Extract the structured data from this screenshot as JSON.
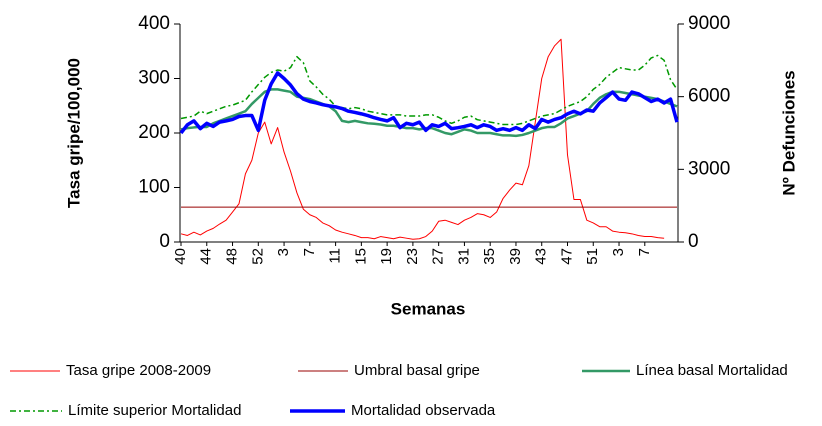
{
  "chart_data": {
    "type": "line",
    "y_label": "Tasa gripe/100,000",
    "y2_label": "Nº Defunciones",
    "x_label": "Semanas",
    "categories": [
      "40",
      null,
      null,
      null,
      "44",
      null,
      null,
      null,
      "48",
      null,
      null,
      null,
      "52",
      null,
      null,
      null,
      "3",
      null,
      null,
      null,
      "7",
      null,
      null,
      null,
      "11",
      null,
      null,
      null,
      "15",
      null,
      null,
      null,
      "19",
      null,
      null,
      null,
      "23",
      null,
      null,
      null,
      "27",
      null,
      null,
      null,
      "31",
      null,
      null,
      null,
      "35",
      null,
      null,
      null,
      "39",
      null,
      null,
      null,
      "43",
      null,
      null,
      null,
      "47",
      null,
      null,
      null,
      "51",
      null,
      null,
      null,
      "3",
      null,
      null,
      null,
      "7",
      null,
      null,
      null,
      null,
      null
    ],
    "ylim": [
      0,
      400
    ],
    "yticks": [
      0,
      100,
      200,
      300,
      400
    ],
    "y2lim": [
      0,
      9000
    ],
    "y2ticks": [
      0,
      3000,
      6000,
      9000
    ],
    "series": [
      {
        "name": "Tasa gripe 2008-2009",
        "color": "#ff0000",
        "values": [
          15,
          12,
          18,
          13,
          20,
          25,
          33,
          40,
          55,
          70,
          125,
          150,
          200,
          220,
          180,
          210,
          165,
          130,
          90,
          60,
          50,
          45,
          35,
          30,
          22,
          18,
          15,
          12,
          8,
          8,
          6,
          10,
          8,
          6,
          9,
          7,
          5,
          6,
          10,
          20,
          38,
          40,
          36,
          32,
          40,
          45,
          52,
          50,
          45,
          55,
          80,
          95,
          108,
          105,
          140,
          220,
          300,
          340,
          360,
          372,
          160,
          78,
          78,
          40,
          35,
          28,
          28,
          20,
          18,
          17,
          15,
          12,
          10,
          10,
          8,
          7,
          null,
          null
        ]
      },
      {
        "name": "Umbral basal gripe",
        "color": "#990000",
        "values": [
          64,
          64,
          64,
          64,
          64,
          64,
          64,
          64,
          64,
          64,
          64,
          64,
          64,
          64,
          64,
          64,
          64,
          64,
          64,
          64,
          64,
          64,
          64,
          64,
          64,
          64,
          64,
          64,
          64,
          64,
          64,
          64,
          64,
          64,
          64,
          64,
          64,
          64,
          64,
          64,
          64,
          64,
          64,
          64,
          64,
          64,
          64,
          64,
          64,
          64,
          64,
          64,
          64,
          64,
          64,
          64,
          64,
          64,
          64,
          64,
          64,
          64,
          64,
          64,
          64,
          64,
          64,
          64,
          64,
          64,
          64,
          64,
          64,
          64,
          64,
          64,
          64,
          64
        ]
      },
      {
        "name": "Línea basal Mortalidad",
        "color": "#339966",
        "axis": "y2",
        "values": [
          4650,
          4700,
          4730,
          4750,
          4750,
          4900,
          5000,
          5100,
          5200,
          5300,
          5400,
          5700,
          5950,
          6200,
          6300,
          6300,
          6250,
          6200,
          6000,
          5950,
          5900,
          5800,
          5700,
          5600,
          5400,
          5000,
          4950,
          5000,
          4950,
          4900,
          4880,
          4850,
          4800,
          4800,
          4750,
          4700,
          4700,
          4650,
          4700,
          4700,
          4600,
          4500,
          4450,
          4550,
          4650,
          4600,
          4500,
          4500,
          4500,
          4450,
          4400,
          4400,
          4380,
          4420,
          4500,
          4600,
          4700,
          4750,
          4750,
          4900,
          5100,
          5200,
          5300,
          5400,
          5700,
          5950,
          6100,
          6200,
          6200,
          6150,
          6100,
          6050,
          6000,
          5950,
          5900,
          5800,
          5700,
          5600
        ]
      },
      {
        "name": "Límite superior Mortalidad",
        "color": "#009900",
        "axis": "y2",
        "style": "dash-dot",
        "values": [
          5100,
          5150,
          5200,
          5400,
          5300,
          5400,
          5500,
          5600,
          5650,
          5750,
          5850,
          6200,
          6500,
          6800,
          7000,
          7100,
          7050,
          7200,
          7650,
          7400,
          6650,
          6400,
          6100,
          5900,
          5600,
          5550,
          5500,
          5550,
          5500,
          5400,
          5350,
          5300,
          5250,
          5250,
          5250,
          5200,
          5200,
          5200,
          5250,
          5250,
          5150,
          5000,
          4900,
          5000,
          5150,
          5200,
          5050,
          5000,
          4950,
          4900,
          4850,
          4850,
          4850,
          4900,
          5000,
          5100,
          5200,
          5250,
          5300,
          5450,
          5600,
          5700,
          5800,
          6000,
          6300,
          6500,
          6800,
          7000,
          7200,
          7150,
          7100,
          7100,
          7300,
          7600,
          7700,
          7500,
          6700,
          6300
        ]
      },
      {
        "name": "Mortalidad observada",
        "color": "#0000ff",
        "axis": "y2",
        "values": [
          4500,
          4840,
          5000,
          4680,
          4900,
          4770,
          4950,
          5000,
          5060,
          5180,
          5220,
          5220,
          4610,
          5850,
          6530,
          6980,
          6750,
          6480,
          6120,
          5900,
          5800,
          5740,
          5670,
          5620,
          5580,
          5510,
          5400,
          5350,
          5290,
          5220,
          5130,
          5060,
          5000,
          5130,
          4720,
          4900,
          4840,
          4950,
          4610,
          4840,
          4770,
          4900,
          4680,
          4720,
          4770,
          4840,
          4720,
          4840,
          4770,
          4610,
          4680,
          4610,
          4720,
          4610,
          4840,
          4680,
          5060,
          4950,
          5060,
          5130,
          5290,
          5400,
          5290,
          5450,
          5400,
          5740,
          5960,
          6190,
          5900,
          5850,
          6190,
          6120,
          5960,
          5800,
          5900,
          5740,
          5900,
          4950
        ]
      }
    ]
  }
}
